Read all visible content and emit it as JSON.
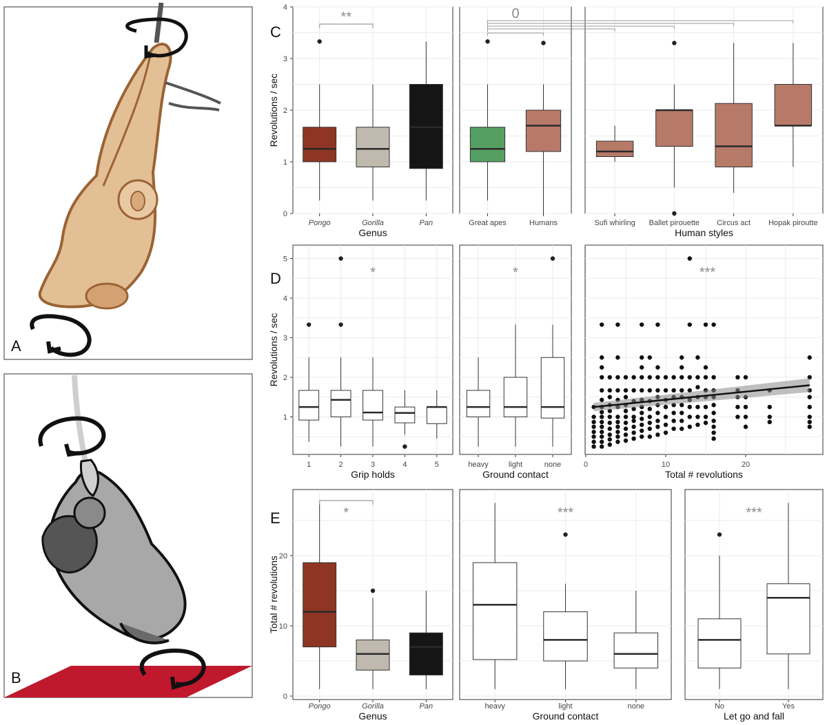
{
  "panel_letters": {
    "a": "A",
    "b": "B",
    "c": "C",
    "d": "D",
    "e": "E"
  },
  "colors": {
    "pongo": "#8f3524",
    "gorilla": "#bfb9ae",
    "pan": "#151515",
    "great_apes": "#569f63",
    "humans": "#b77a69",
    "white": "#ffffff",
    "floor": "#c0182d",
    "sig_grey": "#8c8c8c"
  },
  "illustrations": {
    "a": "orangutan-hanging-spinning",
    "b": "gorilla-hanging-spinning"
  },
  "chart_data": [
    {
      "id": "C1",
      "type": "box",
      "xlabel": "Genus",
      "ylabel": "Revolutions / sec",
      "ylim": [
        0,
        4
      ],
      "yticks": [
        0,
        1,
        2,
        3,
        4
      ],
      "categories": [
        "Pongo",
        "Gorilla",
        "Pan"
      ],
      "italic_categories": true,
      "boxes": [
        {
          "q1": 1.0,
          "median": 1.25,
          "q3": 1.67,
          "lower": 0.25,
          "upper": 2.5,
          "outliers": [
            3.33
          ],
          "color": "pongo"
        },
        {
          "q1": 0.9,
          "median": 1.25,
          "q3": 1.67,
          "lower": 0.25,
          "upper": 2.5,
          "outliers": [],
          "color": "gorilla"
        },
        {
          "q1": 0.87,
          "median": 1.67,
          "q3": 2.5,
          "lower": 0.25,
          "upper": 3.33,
          "outliers": [],
          "color": "pan"
        }
      ],
      "brackets": [
        {
          "from": 0,
          "to": 1,
          "label": "**"
        }
      ]
    },
    {
      "id": "C2",
      "type": "box",
      "xlabel": "",
      "ylim": [
        0,
        4
      ],
      "categories": [
        "Great apes",
        "Humans"
      ],
      "boxes": [
        {
          "q1": 1.0,
          "median": 1.25,
          "q3": 1.67,
          "lower": 0.25,
          "upper": 2.5,
          "outliers": [
            3.33
          ],
          "color": "great_apes"
        },
        {
          "q1": 1.2,
          "median": 1.7,
          "q3": 2.0,
          "lower": 0.0,
          "upper": 2.5,
          "outliers": [
            3.3
          ],
          "color": "humans"
        }
      ],
      "significance_label": "0"
    },
    {
      "id": "C3",
      "type": "box",
      "xlabel": "Human styles",
      "ylim": [
        0,
        4
      ],
      "categories": [
        "Sufi whirling",
        "Ballet pirouette",
        "Circus act",
        "Hopak piroutte"
      ],
      "boxes": [
        {
          "q1": 1.1,
          "median": 1.2,
          "q3": 1.4,
          "lower": 1.0,
          "upper": 1.7,
          "outliers": [],
          "color": "humans"
        },
        {
          "q1": 1.3,
          "median": 2.0,
          "q3": 2.0,
          "lower": 0.5,
          "upper": 2.5,
          "outliers": [
            3.3,
            0.0
          ],
          "color": "humans"
        },
        {
          "q1": 0.9,
          "median": 1.3,
          "q3": 2.13,
          "lower": 0.4,
          "upper": 3.3,
          "outliers": [],
          "color": "humans"
        },
        {
          "q1": 1.7,
          "median": 1.7,
          "q3": 2.5,
          "lower": 0.9,
          "upper": 3.3,
          "outliers": [],
          "color": "humans"
        }
      ]
    },
    {
      "id": "D1",
      "type": "box",
      "xlabel": "Grip holds",
      "ylabel": "Revolutions / sec",
      "ylim": [
        0,
        5
      ],
      "yticks": [
        1,
        2,
        3,
        4,
        5
      ],
      "categories": [
        "1",
        "2",
        "3",
        "4",
        "5"
      ],
      "boxes": [
        {
          "q1": 0.92,
          "median": 1.25,
          "q3": 1.67,
          "lower": 0.37,
          "upper": 2.5,
          "outliers": [
            3.33
          ],
          "color": "white"
        },
        {
          "q1": 1.0,
          "median": 1.43,
          "q3": 1.67,
          "lower": 0.25,
          "upper": 2.5,
          "outliers": [
            3.33,
            5.0
          ],
          "color": "white"
        },
        {
          "q1": 0.92,
          "median": 1.11,
          "q3": 1.67,
          "lower": 0.25,
          "upper": 2.5,
          "outliers": [],
          "color": "white"
        },
        {
          "q1": 0.85,
          "median": 1.1,
          "q3": 1.25,
          "lower": 0.55,
          "upper": 1.67,
          "outliers": [
            0.25
          ],
          "color": "white"
        },
        {
          "q1": 0.83,
          "median": 1.25,
          "q3": 1.25,
          "lower": 0.45,
          "upper": 1.67,
          "outliers": [],
          "color": "white"
        }
      ],
      "significance_label": "*"
    },
    {
      "id": "D2",
      "type": "box",
      "xlabel": "Ground contact",
      "ylim": [
        0,
        5
      ],
      "categories": [
        "heavy",
        "light",
        "none"
      ],
      "boxes": [
        {
          "q1": 1.0,
          "median": 1.25,
          "q3": 1.67,
          "lower": 0.25,
          "upper": 2.5,
          "outliers": [],
          "color": "white"
        },
        {
          "q1": 1.0,
          "median": 1.25,
          "q3": 2.0,
          "lower": 0.25,
          "upper": 3.33,
          "outliers": [],
          "color": "white"
        },
        {
          "q1": 0.97,
          "median": 1.25,
          "q3": 2.5,
          "lower": 0.25,
          "upper": 3.33,
          "outliers": [
            5.0
          ],
          "color": "white"
        }
      ],
      "significance_label": "*"
    },
    {
      "id": "D3",
      "type": "scatter",
      "xlabel": "Total # revolutions",
      "ylim": [
        0,
        5
      ],
      "xlim": [
        0,
        30
      ],
      "xticks": [
        0,
        10,
        20
      ],
      "regression": {
        "x": [
          1,
          28
        ],
        "y": [
          1.25,
          1.8
        ]
      },
      "significance_label": "***",
      "points": [
        [
          1,
          0.25
        ],
        [
          1,
          0.37
        ],
        [
          1,
          0.5
        ],
        [
          1,
          0.62
        ],
        [
          1,
          0.75
        ],
        [
          1,
          0.87
        ],
        [
          1,
          1
        ],
        [
          1,
          1.25
        ],
        [
          2,
          0.25
        ],
        [
          2,
          0.37
        ],
        [
          2,
          0.5
        ],
        [
          2,
          0.62
        ],
        [
          2,
          0.75
        ],
        [
          2,
          0.87
        ],
        [
          2,
          1
        ],
        [
          2,
          1.12
        ],
        [
          2,
          1.25
        ],
        [
          2,
          1.43
        ],
        [
          2,
          1.67
        ],
        [
          2,
          2
        ],
        [
          2,
          2.25
        ],
        [
          2,
          2.5
        ],
        [
          2,
          3.33
        ],
        [
          3,
          0.3
        ],
        [
          3,
          0.43
        ],
        [
          3,
          0.55
        ],
        [
          3,
          0.7
        ],
        [
          3,
          0.85
        ],
        [
          3,
          1
        ],
        [
          3,
          1.15
        ],
        [
          3,
          1.3
        ],
        [
          3,
          1.5
        ],
        [
          3,
          1.67
        ],
        [
          3,
          2
        ],
        [
          4,
          0.37
        ],
        [
          4,
          0.5
        ],
        [
          4,
          0.62
        ],
        [
          4,
          0.75
        ],
        [
          4,
          0.87
        ],
        [
          4,
          1
        ],
        [
          4,
          1.25
        ],
        [
          4,
          1.43
        ],
        [
          4,
          1.67
        ],
        [
          4,
          2
        ],
        [
          4,
          2.5
        ],
        [
          4,
          3.33
        ],
        [
          5,
          0.4
        ],
        [
          5,
          0.55
        ],
        [
          5,
          0.7
        ],
        [
          5,
          0.85
        ],
        [
          5,
          1
        ],
        [
          5,
          1.15
        ],
        [
          5,
          1.3
        ],
        [
          5,
          1.5
        ],
        [
          5,
          1.67
        ],
        [
          5,
          2
        ],
        [
          6,
          0.45
        ],
        [
          6,
          0.6
        ],
        [
          6,
          0.75
        ],
        [
          6,
          0.9
        ],
        [
          6,
          1
        ],
        [
          6,
          1.2
        ],
        [
          6,
          1.4
        ],
        [
          6,
          1.67
        ],
        [
          6,
          2
        ],
        [
          7,
          0.5
        ],
        [
          7,
          0.65
        ],
        [
          7,
          0.8
        ],
        [
          7,
          0.95
        ],
        [
          7,
          1.1
        ],
        [
          7,
          1.25
        ],
        [
          7,
          1.43
        ],
        [
          7,
          1.67
        ],
        [
          7,
          2
        ],
        [
          7,
          2.25
        ],
        [
          7,
          2.5
        ],
        [
          7,
          3.33
        ],
        [
          8,
          0.5
        ],
        [
          8,
          0.7
        ],
        [
          8,
          0.85
        ],
        [
          8,
          1
        ],
        [
          8,
          1.2
        ],
        [
          8,
          1.4
        ],
        [
          8,
          1.67
        ],
        [
          8,
          2
        ],
        [
          8,
          2.5
        ],
        [
          9,
          0.55
        ],
        [
          9,
          0.75
        ],
        [
          9,
          0.9
        ],
        [
          9,
          1.1
        ],
        [
          9,
          1.3
        ],
        [
          9,
          1.5
        ],
        [
          9,
          1.67
        ],
        [
          9,
          2
        ],
        [
          9,
          2.25
        ],
        [
          9,
          3.33
        ],
        [
          10,
          0.6
        ],
        [
          10,
          0.8
        ],
        [
          10,
          1
        ],
        [
          10,
          1.25
        ],
        [
          10,
          1.43
        ],
        [
          10,
          1.67
        ],
        [
          10,
          2
        ],
        [
          11,
          0.7
        ],
        [
          11,
          0.9
        ],
        [
          11,
          1.1
        ],
        [
          11,
          1.3
        ],
        [
          11,
          1.5
        ],
        [
          11,
          1.67
        ],
        [
          11,
          2
        ],
        [
          12,
          0.7
        ],
        [
          12,
          0.9
        ],
        [
          12,
          1.1
        ],
        [
          12,
          1.3
        ],
        [
          12,
          1.5
        ],
        [
          12,
          1.67
        ],
        [
          12,
          2
        ],
        [
          12,
          2.25
        ],
        [
          12,
          2.5
        ],
        [
          13,
          0.75
        ],
        [
          13,
          1
        ],
        [
          13,
          1.25
        ],
        [
          13,
          1.43
        ],
        [
          13,
          1.67
        ],
        [
          13,
          2
        ],
        [
          13,
          3.33
        ],
        [
          13,
          5
        ],
        [
          14,
          0.8
        ],
        [
          14,
          1
        ],
        [
          14,
          1.25
        ],
        [
          14,
          1.5
        ],
        [
          14,
          1.75
        ],
        [
          14,
          2
        ],
        [
          14,
          2.5
        ],
        [
          15,
          0.85
        ],
        [
          15,
          1
        ],
        [
          15,
          1.25
        ],
        [
          15,
          1.5
        ],
        [
          15,
          1.67
        ],
        [
          15,
          2
        ],
        [
          15,
          2.25
        ],
        [
          15,
          3.33
        ],
        [
          16,
          0.45
        ],
        [
          16,
          0.6
        ],
        [
          16,
          0.75
        ],
        [
          16,
          0.9
        ],
        [
          16,
          1.1
        ],
        [
          16,
          1.3
        ],
        [
          16,
          1.5
        ],
        [
          16,
          1.67
        ],
        [
          16,
          2
        ],
        [
          16,
          3.33
        ],
        [
          19,
          1
        ],
        [
          19,
          1.25
        ],
        [
          19,
          1.5
        ],
        [
          19,
          1.67
        ],
        [
          19,
          2
        ],
        [
          20,
          0.75
        ],
        [
          20,
          1
        ],
        [
          20,
          1.25
        ],
        [
          20,
          1.5
        ],
        [
          20,
          2
        ],
        [
          23,
          0.87
        ],
        [
          23,
          1
        ],
        [
          23,
          1.25
        ],
        [
          23,
          1.67
        ],
        [
          28,
          0.75
        ],
        [
          28,
          0.87
        ],
        [
          28,
          1
        ],
        [
          28,
          1.25
        ],
        [
          28,
          1.5
        ],
        [
          28,
          1.67
        ],
        [
          28,
          2
        ],
        [
          28,
          2.5
        ]
      ]
    },
    {
      "id": "E1",
      "type": "box",
      "xlabel": "Genus",
      "ylabel": "Total # revolutions",
      "ylim": [
        0,
        28
      ],
      "yticks": [
        0,
        10,
        20
      ],
      "categories": [
        "Pongo",
        "Gorilla",
        "Pan"
      ],
      "italic_categories": true,
      "boxes": [
        {
          "q1": 7,
          "median": 12,
          "q3": 19,
          "lower": 1,
          "upper": 27.5,
          "outliers": [],
          "color": "pongo"
        },
        {
          "q1": 3.7,
          "median": 6,
          "q3": 8,
          "lower": 1,
          "upper": 14,
          "outliers": [
            15
          ],
          "color": "gorilla"
        },
        {
          "q1": 3,
          "median": 7,
          "q3": 9,
          "lower": 1,
          "upper": 15,
          "outliers": [],
          "color": "pan"
        }
      ],
      "brackets": [
        {
          "from": 0,
          "to": 1,
          "label": "*"
        }
      ]
    },
    {
      "id": "E2",
      "type": "box",
      "xlabel": "Ground contact",
      "ylim": [
        0,
        28
      ],
      "categories": [
        "heavy",
        "light",
        "none"
      ],
      "boxes": [
        {
          "q1": 5.2,
          "median": 13,
          "q3": 19,
          "lower": 1,
          "upper": 27.5,
          "outliers": [],
          "color": "white"
        },
        {
          "q1": 5,
          "median": 8,
          "q3": 12,
          "lower": 1,
          "upper": 16,
          "outliers": [
            23
          ],
          "color": "white"
        },
        {
          "q1": 4,
          "median": 6,
          "q3": 9,
          "lower": 1,
          "upper": 15,
          "outliers": [],
          "color": "white"
        }
      ],
      "significance_label": "***"
    },
    {
      "id": "E3",
      "type": "box",
      "xlabel": "Let go and fall",
      "ylim": [
        0,
        28
      ],
      "categories": [
        "No",
        "Yes"
      ],
      "boxes": [
        {
          "q1": 4,
          "median": 8,
          "q3": 11,
          "lower": 1,
          "upper": 20,
          "outliers": [
            23
          ],
          "color": "white"
        },
        {
          "q1": 6,
          "median": 14,
          "q3": 16,
          "lower": 1,
          "upper": 27.5,
          "outliers": [],
          "color": "white"
        }
      ],
      "significance_label": "***"
    }
  ]
}
